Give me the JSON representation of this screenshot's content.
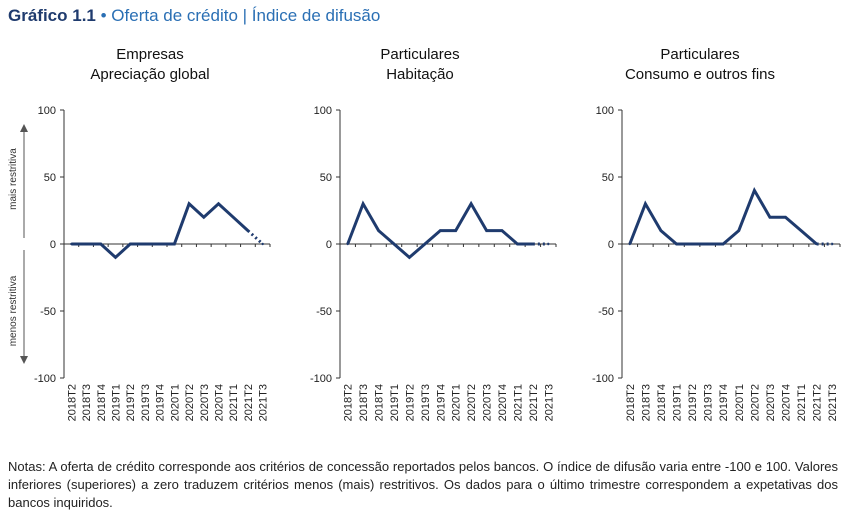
{
  "header": {
    "figure_label": "Gráfico 1.1",
    "bullet": "•",
    "subtitle": "Oferta de crédito | Índice de difusão"
  },
  "axis_side_labels": {
    "upper": "mais restritiva",
    "lower": "menos restritiva"
  },
  "notes": {
    "text": "Notas: A oferta de crédito corresponde aos critérios de concessão reportados pelos bancos. O índice de difusão varia entre -100 e 100. Valores inferiores (superiores) a zero traduzem critérios menos (mais) restritivos. Os dados para o último trimestre correspondem a expetativas dos bancos inquiridos."
  },
  "colors": {
    "line": "#1f3b6e",
    "axis": "#333333",
    "title_blue": "#2a6fb4"
  },
  "chart_data": [
    {
      "type": "line",
      "title": "Empresas",
      "subtitle": "Apreciação global",
      "yticks": [
        100,
        50,
        0,
        -50,
        -100
      ],
      "ylim": [
        -100,
        100
      ],
      "categories": [
        "2018T2",
        "2018T3",
        "2018T4",
        "2019T1",
        "2019T2",
        "2019T3",
        "2019T4",
        "2020T1",
        "2020T2",
        "2020T3",
        "2020T4",
        "2021T1",
        "2021T2",
        "2021T3"
      ],
      "values": [
        0,
        0,
        0,
        -10,
        0,
        0,
        0,
        0,
        30,
        20,
        30,
        20,
        10,
        0
      ],
      "last_dotted": true
    },
    {
      "type": "line",
      "title": "Particulares",
      "subtitle": "Habitação",
      "yticks": [
        100,
        50,
        0,
        -50,
        -100
      ],
      "ylim": [
        -100,
        100
      ],
      "categories": [
        "2018T2",
        "2018T3",
        "2018T4",
        "2019T1",
        "2019T2",
        "2019T3",
        "2019T4",
        "2020T1",
        "2020T2",
        "2020T3",
        "2020T4",
        "2021T1",
        "2021T2",
        "2021T3"
      ],
      "values": [
        0,
        30,
        10,
        0,
        -10,
        0,
        10,
        10,
        30,
        10,
        10,
        0,
        0,
        0
      ],
      "last_dotted": true
    },
    {
      "type": "line",
      "title": "Particulares",
      "subtitle": "Consumo e outros fins",
      "yticks": [
        100,
        50,
        0,
        -50,
        -100
      ],
      "ylim": [
        -100,
        100
      ],
      "categories": [
        "2018T2",
        "2018T3",
        "2018T4",
        "2019T1",
        "2019T2",
        "2019T3",
        "2019T4",
        "2020T1",
        "2020T2",
        "2020T3",
        "2020T4",
        "2021T1",
        "2021T2",
        "2021T3"
      ],
      "values": [
        0,
        30,
        10,
        0,
        0,
        0,
        0,
        10,
        40,
        20,
        20,
        10,
        0,
        0
      ],
      "last_dotted": true
    }
  ]
}
